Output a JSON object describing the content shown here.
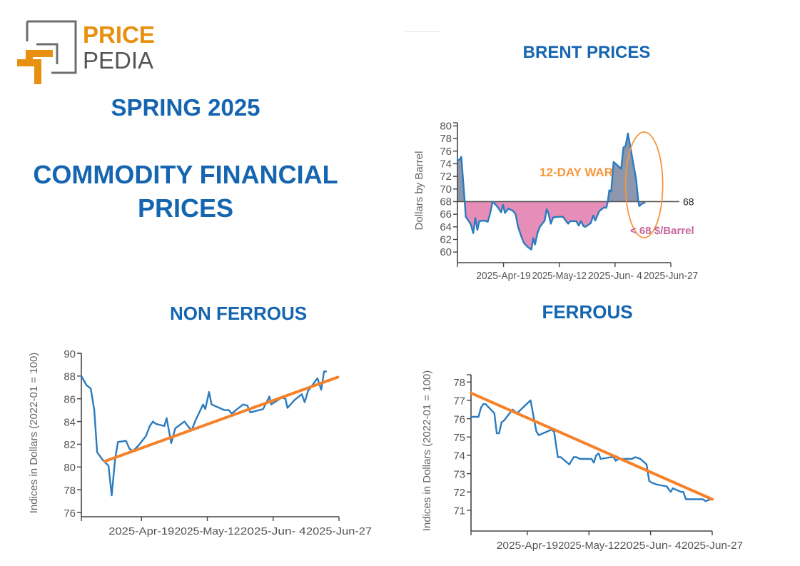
{
  "logo": {
    "word1": "PRICE",
    "word2": "PEDIA"
  },
  "header": {
    "season": "SPRING 2025",
    "title_line1": "COMMODITY FINANCIAL",
    "title_line2": "PRICES"
  },
  "colors": {
    "title_blue": "#1565b0",
    "series_blue": "#2a7bbf",
    "trend_orange": "#f5822a",
    "below_fill": "#e68db8",
    "above_fill": "#8c97ad",
    "annotation_orange": "#f7953a",
    "annotation_pink": "#c9659b",
    "logo_orange": "#e8900f",
    "logo_gray": "#555555"
  },
  "chart_data": [
    {
      "id": "brent",
      "type": "area",
      "title": "BRENT PRICES",
      "xlabel": "",
      "ylabel": "Dollars by Barrel",
      "x_unit": "days since 2025-Mar-31",
      "xlim": [
        0,
        88
      ],
      "ylim": [
        59,
        80.5
      ],
      "yticks": [
        60,
        62,
        64,
        66,
        68,
        70,
        72,
        74,
        76,
        78,
        80
      ],
      "xticks": [
        {
          "day": 19,
          "label": "2025-Apr-19"
        },
        {
          "day": 42,
          "label": "2025-May-12"
        },
        {
          "day": 65,
          "label": "2025-Jun- 4"
        },
        {
          "day": 88,
          "label": "2025-Jun-27"
        }
      ],
      "reference_line": {
        "value": 68,
        "label": "68"
      },
      "annotations": [
        {
          "text": "12-DAY WAR",
          "kind": "ellipse-highlight",
          "x_range": [
            70,
            84
          ]
        },
        {
          "text": "< 68 $/Barrel",
          "kind": "below-reference"
        }
      ],
      "series": [
        {
          "name": "Brent",
          "points": [
            [
              0,
              74.6
            ],
            [
              0.8,
              74.6
            ],
            [
              1.6,
              75.1
            ],
            [
              3,
              68
            ],
            [
              3.4,
              65.6
            ],
            [
              4.5,
              65
            ],
            [
              5.5,
              64.4
            ],
            [
              6.5,
              63
            ],
            [
              7.4,
              65.4
            ],
            [
              8.2,
              63.5
            ],
            [
              9,
              64.9
            ],
            [
              11,
              65
            ],
            [
              12.5,
              64.8
            ],
            [
              13.5,
              66.2
            ],
            [
              14.5,
              68
            ],
            [
              16,
              67.4
            ],
            [
              17,
              66.9
            ],
            [
              18,
              66.3
            ],
            [
              18.8,
              67.5
            ],
            [
              19.6,
              66.2
            ],
            [
              21,
              66.9
            ],
            [
              23,
              66.5
            ],
            [
              24,
              66
            ],
            [
              25,
              64
            ],
            [
              26.5,
              62.3
            ],
            [
              27.5,
              61.4
            ],
            [
              29,
              60.8
            ],
            [
              30.5,
              60.4
            ],
            [
              31.3,
              62.2
            ],
            [
              32,
              61.2
            ],
            [
              33,
              63
            ],
            [
              34,
              64
            ],
            [
              36,
              65
            ],
            [
              36.8,
              66.8
            ],
            [
              37.5,
              66.2
            ],
            [
              38.5,
              64.5
            ],
            [
              39.5,
              65.5
            ],
            [
              42,
              65.6
            ],
            [
              43.5,
              65.6
            ],
            [
              45,
              64.8
            ],
            [
              45.7,
              64.5
            ],
            [
              46.5,
              64.9
            ],
            [
              49,
              64.9
            ],
            [
              50,
              64.2
            ],
            [
              51,
              64.9
            ],
            [
              52,
              64.1
            ],
            [
              52.8,
              64
            ],
            [
              55,
              64.6
            ],
            [
              56,
              65.8
            ],
            [
              56.8,
              65
            ],
            [
              57.5,
              65.6
            ],
            [
              58.5,
              66.5
            ],
            [
              60.5,
              67.1
            ],
            [
              61.4,
              67
            ],
            [
              62,
              68
            ],
            [
              62.6,
              69.8
            ],
            [
              63.4,
              69.6
            ],
            [
              64.4,
              74.3
            ],
            [
              67.5,
              73.2
            ],
            [
              68.5,
              76.6
            ],
            [
              69.3,
              76.8
            ],
            [
              70.3,
              78.8
            ],
            [
              73.7,
              71.5
            ],
            [
              74.6,
              68
            ],
            [
              75,
              67.3
            ],
            [
              76.3,
              67.7
            ],
            [
              77.2,
              67.8
            ]
          ]
        }
      ]
    },
    {
      "id": "non-ferrous",
      "type": "line",
      "title": "NON FERROUS",
      "xlabel": "",
      "ylabel": "Indices in Dollars (2022-01 = 100)",
      "x_unit": "days since 2025-Mar-29",
      "xlim": [
        0,
        90
      ],
      "ylim": [
        76,
        90
      ],
      "yticks": [
        76,
        78,
        80,
        82,
        84,
        86,
        88,
        90
      ],
      "xticks": [
        {
          "day": 21,
          "label": "2025-Apr-19"
        },
        {
          "day": 44,
          "label": "2025-May-12"
        },
        {
          "day": 67,
          "label": "2025-Jun- 4"
        },
        {
          "day": 90,
          "label": "2025-Jun-27"
        }
      ],
      "series": [
        {
          "name": "Non Ferrous Index",
          "points": [
            [
              0,
              88
            ],
            [
              1.8,
              87.2
            ],
            [
              3.3,
              86.9
            ],
            [
              4.5,
              85
            ],
            [
              5.5,
              81.3
            ],
            [
              7.5,
              80.6
            ],
            [
              9.5,
              80.1
            ],
            [
              10.6,
              77.5
            ],
            [
              11.8,
              80.7
            ],
            [
              12.8,
              82.2
            ],
            [
              15.6,
              82.3
            ],
            [
              16.8,
              81.6
            ],
            [
              18,
              81.4
            ],
            [
              20,
              81.9
            ],
            [
              22.5,
              82.7
            ],
            [
              23.9,
              83.6
            ],
            [
              25,
              84
            ],
            [
              26,
              83.8
            ],
            [
              29,
              83.6
            ],
            [
              29.8,
              84.3
            ],
            [
              31.4,
              82.1
            ],
            [
              32.8,
              83.4
            ],
            [
              36,
              84
            ],
            [
              38.5,
              83.2
            ],
            [
              39.9,
              84.1
            ],
            [
              42.5,
              85.5
            ],
            [
              43.3,
              85.1
            ],
            [
              44.6,
              86.6
            ],
            [
              45.5,
              85.5
            ],
            [
              50,
              85
            ],
            [
              51.5,
              85
            ],
            [
              52.5,
              84.7
            ],
            [
              54,
              85
            ],
            [
              56.5,
              85.5
            ],
            [
              58,
              85.4
            ],
            [
              59,
              84.8
            ],
            [
              63.5,
              85.1
            ],
            [
              65.7,
              86.2
            ],
            [
              66.3,
              85.5
            ],
            [
              70,
              86.1
            ],
            [
              71.3,
              86
            ],
            [
              72,
              85.2
            ],
            [
              74.5,
              85.9
            ],
            [
              77,
              86.4
            ],
            [
              78,
              85.7
            ],
            [
              79.2,
              86.7
            ],
            [
              82.5,
              87.8
            ],
            [
              83.8,
              86.8
            ],
            [
              84.8,
              88.4
            ],
            [
              85.5,
              88.4
            ]
          ]
        },
        {
          "name": "Trend",
          "points": [
            [
              8.2,
              80.5
            ],
            [
              89.6,
              87.9
            ]
          ]
        }
      ]
    },
    {
      "id": "ferrous",
      "type": "line",
      "title": "FERROUS",
      "xlabel": "",
      "ylabel": "Indices in Dollars (2022-01 = 100)",
      "x_unit": "days since 2025-Mar-29",
      "xlim": [
        0,
        90
      ],
      "ylim": [
        70.1,
        78.4
      ],
      "yticks": [
        71,
        72,
        73,
        74,
        75,
        76,
        77,
        78
      ],
      "xticks": [
        {
          "day": 21,
          "label": "2025-Apr-19"
        },
        {
          "day": 44,
          "label": "2025-May-12"
        },
        {
          "day": 67,
          "label": "2025-Jun- 4"
        },
        {
          "day": 90,
          "label": "2025-Jun-27"
        }
      ],
      "series": [
        {
          "name": "Ferrous Index",
          "points": [
            [
              0,
              76.1
            ],
            [
              2.8,
              76.1
            ],
            [
              3.7,
              76.6
            ],
            [
              4.6,
              76.8
            ],
            [
              5.4,
              76.8
            ],
            [
              8.7,
              76.3
            ],
            [
              9.6,
              75.2
            ],
            [
              10.5,
              75.2
            ],
            [
              11.4,
              75.8
            ],
            [
              12.3,
              75.9
            ],
            [
              15.5,
              76.5
            ],
            [
              17.2,
              76.3
            ],
            [
              22.2,
              77
            ],
            [
              24.4,
              75.3
            ],
            [
              25.3,
              75.1
            ],
            [
              30,
              75.4
            ],
            [
              31,
              75.3
            ],
            [
              32.4,
              73.9
            ],
            [
              33.5,
              73.9
            ],
            [
              36.7,
              73.5
            ],
            [
              38.3,
              73.9
            ],
            [
              39.3,
              73.9
            ],
            [
              40.8,
              73.8
            ],
            [
              45,
              73.8
            ],
            [
              45.8,
              73.6
            ],
            [
              46.7,
              74
            ],
            [
              47.6,
              74.1
            ],
            [
              48.4,
              73.8
            ],
            [
              52.2,
              73.9
            ],
            [
              53.2,
              73.9
            ],
            [
              54,
              73.7
            ],
            [
              55,
              73.8
            ],
            [
              60,
              73.8
            ],
            [
              61.3,
              73.9
            ],
            [
              63.2,
              73.8
            ],
            [
              65.5,
              73.5
            ],
            [
              66.5,
              72.6
            ],
            [
              67.5,
              72.5
            ],
            [
              69.5,
              72.4
            ],
            [
              73,
              72.3
            ],
            [
              74.5,
              72
            ],
            [
              75.3,
              72.2
            ],
            [
              78.4,
              72
            ],
            [
              79.2,
              72
            ],
            [
              80.2,
              71.6
            ],
            [
              81.2,
              71.6
            ],
            [
              82.3,
              71.6
            ],
            [
              86.5,
              71.6
            ],
            [
              87.5,
              71.5
            ],
            [
              89.5,
              71.6
            ]
          ]
        },
        {
          "name": "Trend",
          "points": [
            [
              0,
              77.4
            ],
            [
              90,
              71.6
            ]
          ]
        }
      ]
    }
  ]
}
